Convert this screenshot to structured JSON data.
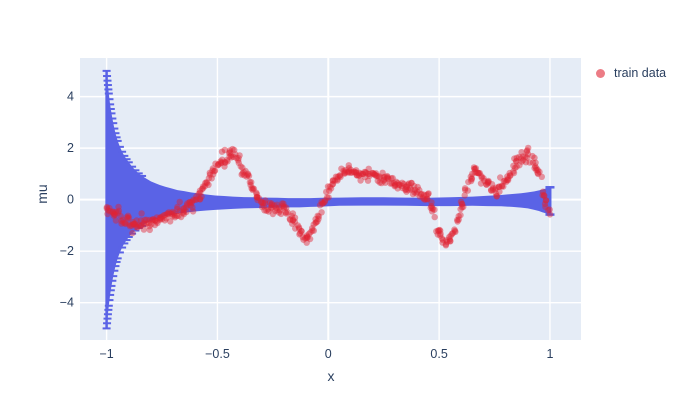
{
  "legend": {
    "items": [
      {
        "label": "train data",
        "marker": "circle",
        "marker_color": "rgba(224,36,52,0.6)"
      }
    ]
  },
  "chart_data": {
    "type": "scatter",
    "title": "",
    "xlabel": "x",
    "ylabel": "mu",
    "xlim": [
      -1.12,
      1.14
    ],
    "ylim": [
      -5.45,
      5.5
    ],
    "x_tick_values": [
      -1,
      -0.5,
      0,
      0.5,
      1
    ],
    "x_tick_labels": [
      "−1",
      "−0.5",
      "0",
      "0.5",
      "1"
    ],
    "y_tick_values": [
      -4,
      -2,
      0,
      2,
      4
    ],
    "y_tick_labels": [
      "−4",
      "−2",
      "0",
      "2",
      "4"
    ],
    "grid": true,
    "legend_position": "top-right",
    "colors": {
      "plot_background": "#e5ecf6",
      "grid": "#ffffff",
      "text": "#2a3f5f",
      "train_data": "#e02434",
      "uncertainty_band": "#5a63e6"
    },
    "series": [
      {
        "name": "mu uncertainty band",
        "type": "errorband",
        "color": "#5a63e6",
        "show_in_legend": false,
        "envelope": {
          "x": [
            -1.0,
            -0.998,
            -0.996,
            -0.994,
            -0.992,
            -0.99,
            -0.987,
            -0.984,
            -0.981,
            -0.978,
            -0.974,
            -0.97,
            -0.965,
            -0.96,
            -0.955,
            -0.95,
            -0.94,
            -0.93,
            -0.92,
            -0.91,
            -0.9,
            -0.885,
            -0.87,
            -0.855,
            -0.84,
            -0.82,
            -0.8,
            -0.78,
            -0.76,
            -0.735,
            -0.71,
            -0.68,
            -0.65,
            -0.62,
            -0.59,
            -0.55,
            -0.51,
            -0.47,
            -0.43,
            -0.38,
            -0.33,
            -0.28,
            -0.23,
            -0.18,
            -0.13,
            -0.08,
            -0.03,
            0.05,
            0.15,
            0.25,
            0.35,
            0.45,
            0.55,
            0.65,
            0.72,
            0.78,
            0.83,
            0.87,
            0.9,
            0.93,
            0.95,
            0.965,
            0.98,
            0.99,
            1.0
          ],
          "mean": [
            0,
            0,
            0,
            0,
            0,
            0,
            0,
            0,
            0,
            0,
            0,
            0,
            0,
            0,
            0,
            0,
            0,
            0,
            0,
            0,
            0,
            -0.02,
            -0.03,
            -0.04,
            -0.05,
            -0.05,
            -0.06,
            -0.06,
            -0.07,
            -0.07,
            -0.08,
            -0.09,
            -0.09,
            -0.1,
            -0.1,
            -0.11,
            -0.12,
            -0.12,
            -0.12,
            -0.12,
            -0.12,
            -0.12,
            -0.12,
            -0.12,
            -0.12,
            -0.11,
            -0.1,
            -0.08,
            -0.07,
            -0.07,
            -0.08,
            -0.09,
            -0.08,
            -0.06,
            -0.05,
            -0.04,
            -0.03,
            -0.03,
            -0.03,
            -0.04,
            -0.04,
            -0.05,
            -0.05,
            -0.05,
            -0.05
          ],
          "half_width": [
            5.0,
            4.8,
            4.62,
            4.45,
            4.28,
            4.12,
            3.9,
            3.7,
            3.52,
            3.35,
            3.15,
            2.97,
            2.76,
            2.58,
            2.42,
            2.28,
            2.05,
            1.86,
            1.7,
            1.57,
            1.45,
            1.3,
            1.17,
            1.06,
            0.97,
            0.86,
            0.77,
            0.7,
            0.64,
            0.57,
            0.52,
            0.46,
            0.42,
            0.38,
            0.35,
            0.31,
            0.28,
            0.26,
            0.24,
            0.22,
            0.21,
            0.2,
            0.19,
            0.18,
            0.18,
            0.17,
            0.17,
            0.16,
            0.16,
            0.16,
            0.16,
            0.16,
            0.17,
            0.18,
            0.2,
            0.22,
            0.25,
            0.28,
            0.31,
            0.36,
            0.4,
            0.44,
            0.48,
            0.51,
            0.53
          ]
        }
      },
      {
        "name": "train data",
        "type": "scatter",
        "color": "#e02434",
        "opacity": 0.45,
        "marker_radius": 3.2,
        "n_points": 550,
        "noise_sd": 0.13,
        "x_range": [
          -1,
          1
        ],
        "curve_anchors": {
          "x": [
            -1.0,
            -0.96,
            -0.92,
            -0.88,
            -0.84,
            -0.8,
            -0.76,
            -0.72,
            -0.68,
            -0.64,
            -0.6,
            -0.56,
            -0.52,
            -0.48,
            -0.45,
            -0.42,
            -0.39,
            -0.36,
            -0.33,
            -0.3,
            -0.27,
            -0.24,
            -0.21,
            -0.18,
            -0.15,
            -0.12,
            -0.09,
            -0.06,
            -0.03,
            0.0,
            0.03,
            0.06,
            0.1,
            0.14,
            0.18,
            0.22,
            0.26,
            0.3,
            0.34,
            0.38,
            0.42,
            0.45,
            0.48,
            0.51,
            0.54,
            0.57,
            0.6,
            0.63,
            0.66,
            0.7,
            0.73,
            0.76,
            0.8,
            0.84,
            0.87,
            0.9,
            0.93,
            0.96,
            0.98,
            1.0
          ],
          "y": [
            -0.35,
            -0.55,
            -0.78,
            -0.95,
            -1.0,
            -0.9,
            -0.78,
            -0.65,
            -0.5,
            -0.3,
            -0.05,
            0.45,
            1.05,
            1.55,
            1.75,
            1.7,
            1.3,
            0.75,
            0.25,
            -0.2,
            -0.38,
            -0.28,
            -0.35,
            -0.6,
            -0.95,
            -1.4,
            -1.45,
            -1.0,
            -0.35,
            0.3,
            0.75,
            1.05,
            1.15,
            1.0,
            1.05,
            0.9,
            0.75,
            0.65,
            0.55,
            0.45,
            0.25,
            0.0,
            -0.7,
            -1.55,
            -1.75,
            -1.2,
            -0.3,
            0.55,
            1.1,
            0.85,
            0.55,
            0.4,
            0.75,
            1.25,
            1.6,
            1.8,
            1.35,
            0.6,
            0.0,
            -0.5
          ]
        }
      }
    ]
  }
}
